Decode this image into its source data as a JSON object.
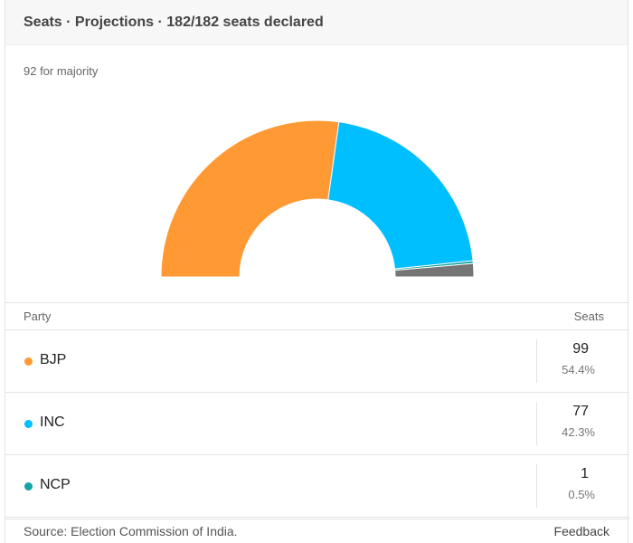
{
  "header": {
    "title": "Seats · Projections · 182/182 seats declared"
  },
  "majority_label": "92 for majority",
  "table": {
    "party_header": "Party",
    "seats_header": "Seats",
    "rows": [
      {
        "party": "BJP",
        "seats": "99",
        "percent": "54.4%",
        "color": "#ff9933"
      },
      {
        "party": "INC",
        "seats": "77",
        "percent": "42.3%",
        "color": "#00bfff"
      },
      {
        "party": "NCP",
        "seats": "1",
        "percent": "0.5%",
        "color": "#14a3a3"
      }
    ]
  },
  "footer": {
    "source": "Source: Election Commission of India.",
    "feedback": "Feedback"
  },
  "chart_data": {
    "type": "pie",
    "variant": "half-donut",
    "total_seats": 182,
    "series": [
      {
        "label": "BJP",
        "value": 99,
        "color": "#ff9933"
      },
      {
        "label": "INC",
        "value": 77,
        "color": "#00bfff"
      },
      {
        "label": "NCP",
        "value": 1,
        "color": "#14a3a3"
      },
      {
        "label": "",
        "value": 5,
        "color": "#757575"
      }
    ]
  }
}
